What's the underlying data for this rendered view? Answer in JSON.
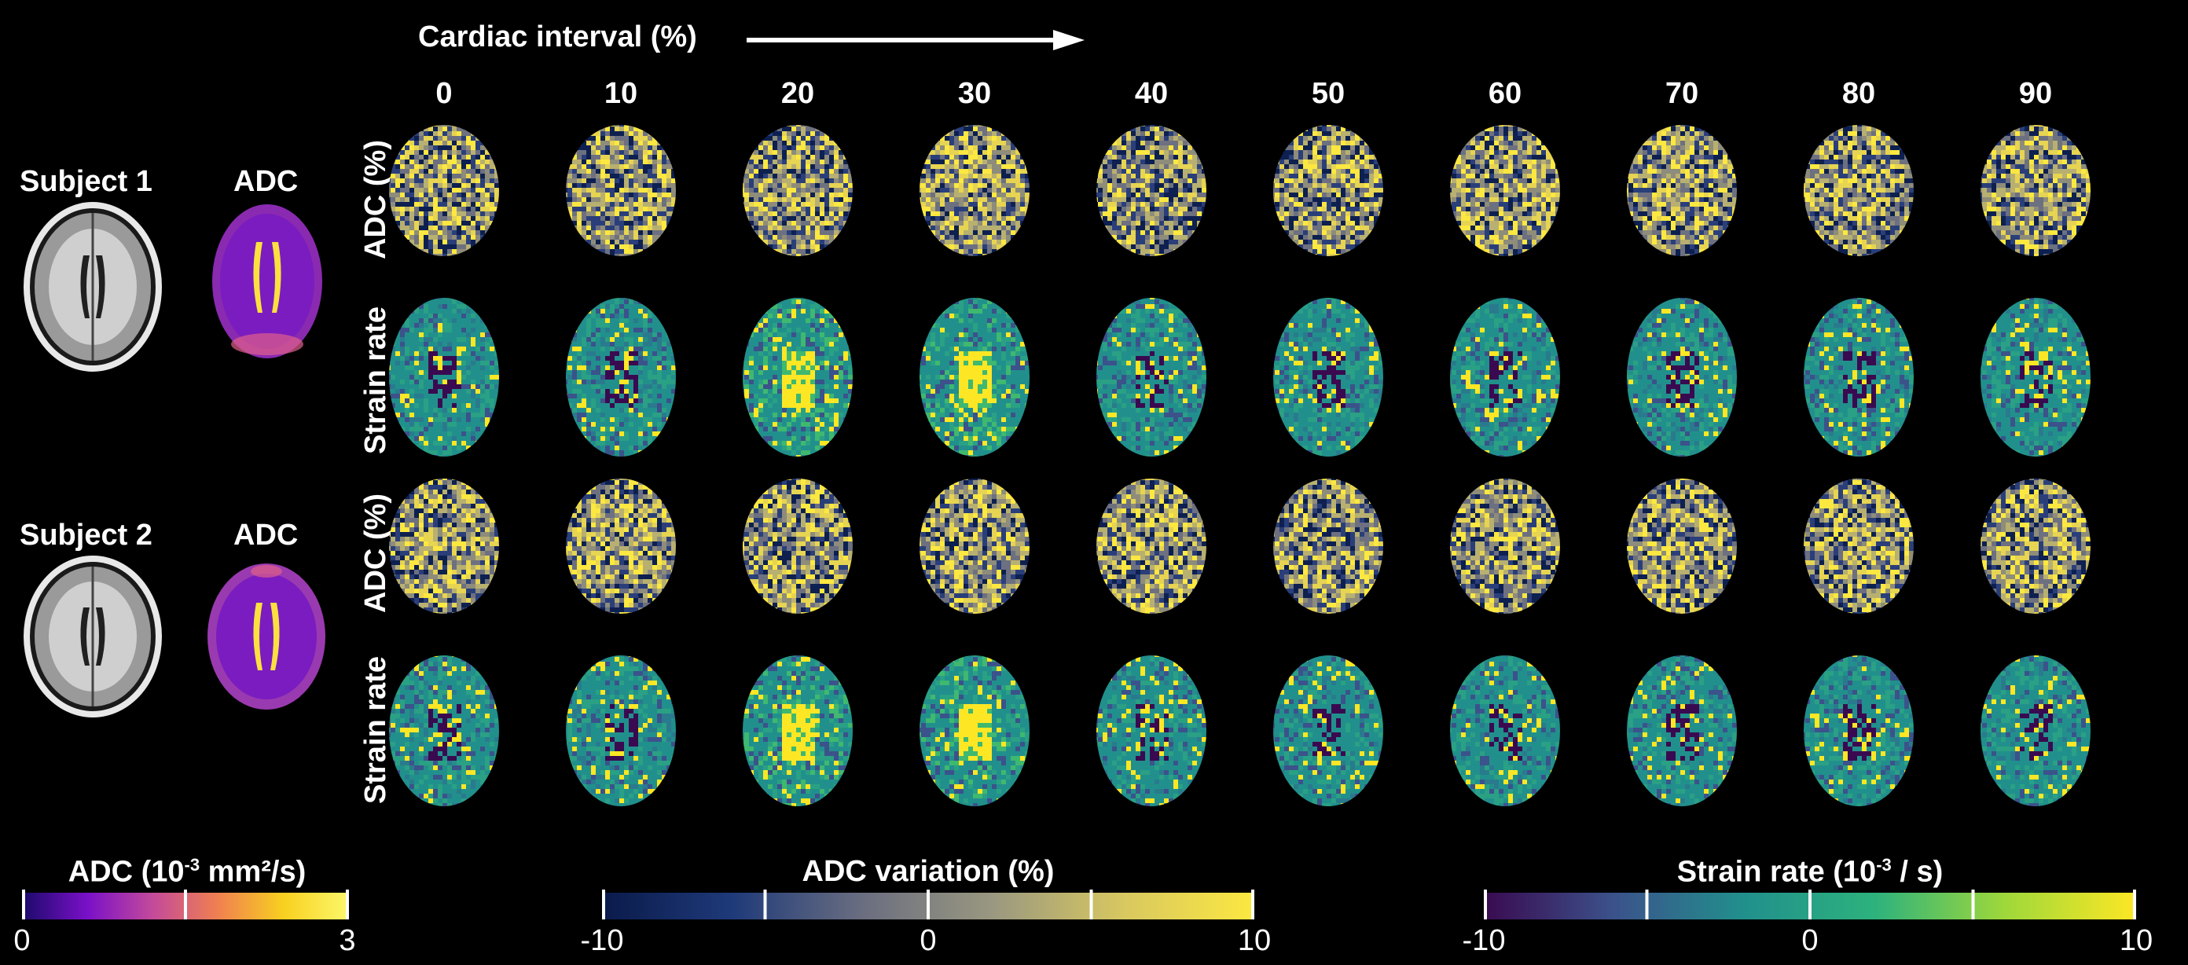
{
  "header": {
    "title": "Cardiac interval (%)"
  },
  "columns": [
    "0",
    "10",
    "20",
    "30",
    "40",
    "50",
    "60",
    "70",
    "80",
    "90"
  ],
  "row_labels": [
    "ADC (%)",
    "Strain rate",
    "ADC (%)",
    "Strain rate"
  ],
  "subjects": [
    {
      "name": "Subject 1",
      "map_label": "ADC"
    },
    {
      "name": "Subject 2",
      "map_label": "ADC"
    }
  ],
  "colorbars": [
    {
      "title_pre": "ADC (10",
      "title_sup": "-3",
      "title_post": " mm²/s)",
      "min": "0",
      "max": "3",
      "colors": [
        "#1b0a6a",
        "#7a10c8",
        "#c44a9a",
        "#f08050",
        "#f8d020",
        "#fcf86a"
      ]
    },
    {
      "title": "ADC variation (%)",
      "min": "-10",
      "mid": "0",
      "max": "10",
      "colors": [
        "#0a1a4a",
        "#1f3a7a",
        "#6a6e80",
        "#9a9880",
        "#d8c860",
        "#fce840"
      ]
    },
    {
      "title_pre": "Strain rate (10",
      "title_sup": "-3",
      "title_post": " / s)",
      "min": "-10",
      "mid": "0",
      "max": "10",
      "colors": [
        "#3a0a50",
        "#3b528b",
        "#21908c",
        "#2db27d",
        "#9fd83a",
        "#fde725"
      ]
    }
  ]
}
